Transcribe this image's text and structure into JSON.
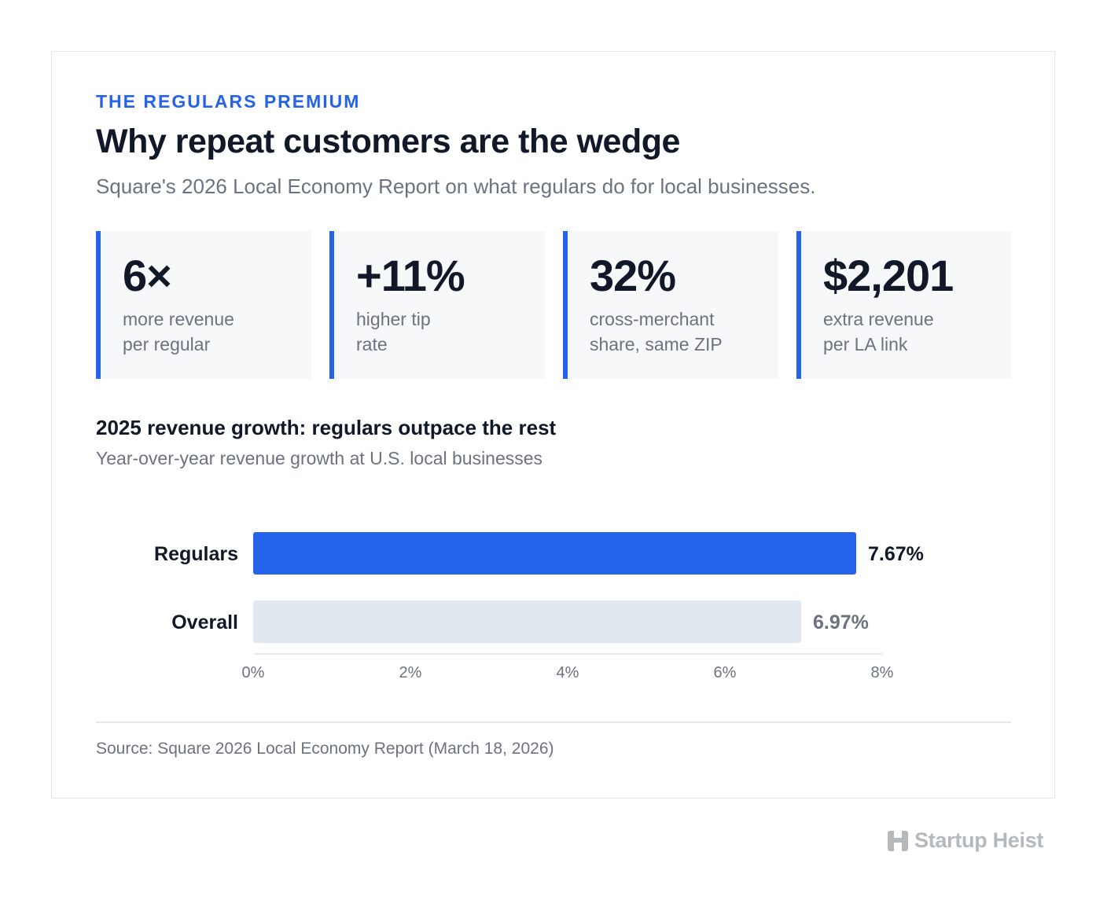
{
  "header": {
    "eyebrow": "THE REGULARS PREMIUM",
    "title": "Why repeat customers are the wedge",
    "subtitle": "Square's 2026 Local Economy Report on what regulars do for local businesses."
  },
  "stats": [
    {
      "value": "6×",
      "label_line1": "more revenue",
      "label_line2": "per regular"
    },
    {
      "value": "+11%",
      "label_line1": "higher tip",
      "label_line2": "rate"
    },
    {
      "value": "32%",
      "label_line1": "cross-merchant",
      "label_line2": "share, same ZIP"
    },
    {
      "value": "$2,201",
      "label_line1": "extra revenue",
      "label_line2": "per LA link"
    }
  ],
  "chart_data": {
    "type": "bar",
    "orientation": "horizontal",
    "title": "2025 revenue growth: regulars outpace the rest",
    "subtitle": "Year-over-year revenue growth at U.S. local businesses",
    "categories": [
      "Regulars",
      "Overall"
    ],
    "values": [
      7.67,
      6.97
    ],
    "value_labels": [
      "7.67%",
      "6.97%"
    ],
    "colors": [
      "#2563eb",
      "#e2e8f0"
    ],
    "value_label_colors": [
      "#111827",
      "#6b7280"
    ],
    "xlim": [
      0,
      8
    ],
    "xticks": [
      0,
      2,
      4,
      6,
      8
    ],
    "xtick_labels": [
      "0%",
      "2%",
      "4%",
      "6%",
      "8%"
    ],
    "grid": false
  },
  "footer": {
    "source": "Source: Square 2026 Local Economy Report (March 18, 2026)"
  },
  "brand": {
    "name": "Startup Heist",
    "icon": "h-logo-icon"
  },
  "colors": {
    "accent": "#2563eb",
    "text_dark": "#111827",
    "text_muted": "#6b7280",
    "card_bg": "#f7f8fa"
  }
}
